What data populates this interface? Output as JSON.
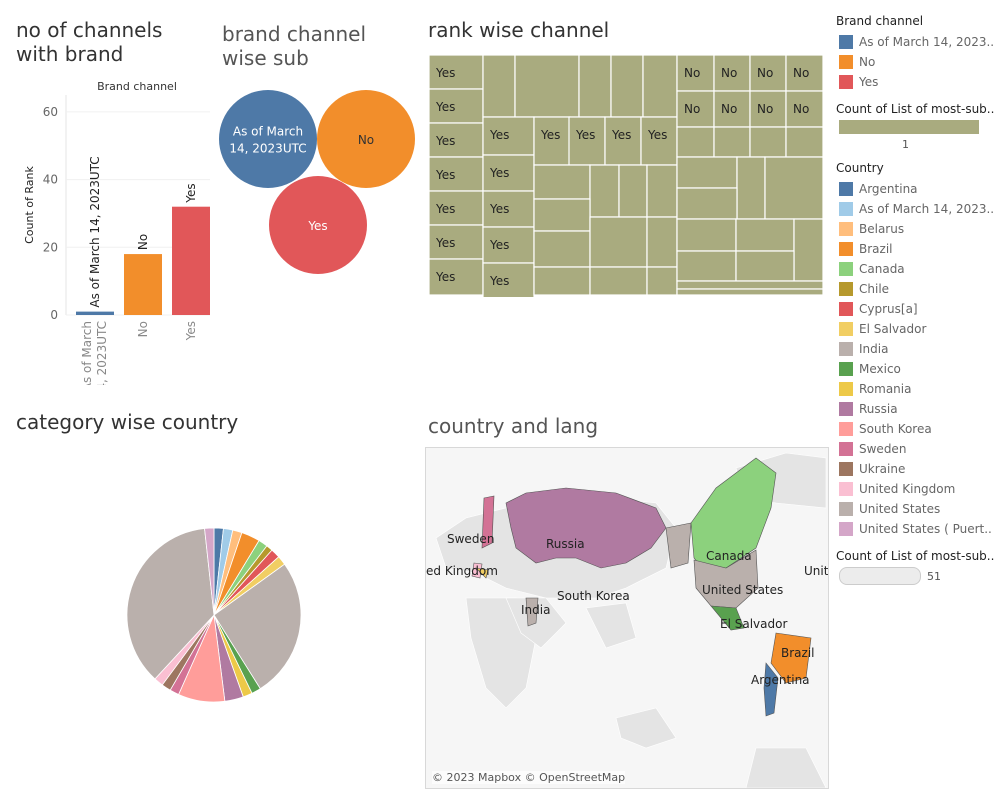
{
  "titles": {
    "bar": "no of channels with brand",
    "bubble": "brand channel wise sub",
    "treemap": "rank wise channel",
    "pie": "category wise country",
    "map": "country and lang"
  },
  "colors": {
    "as_of": "#4e79a7",
    "no": "#f28e2b",
    "yes": "#e15759",
    "treemap": "#a9ab7f"
  },
  "chart_data": [
    {
      "type": "bar",
      "title": "no of channels with brand",
      "header": "Brand channel",
      "ylabel": "Count of Rank",
      "xlabel": "",
      "ylim": [
        0,
        65
      ],
      "yticks": [
        0,
        20,
        40,
        60
      ],
      "categories": [
        "As of March 14, 2023UTC",
        "No",
        "Yes"
      ],
      "values": [
        1,
        18,
        32
      ],
      "data_labels": [
        "As of March 14, 2023UTC",
        "No",
        "Yes"
      ]
    },
    {
      "type": "bubble",
      "title": "brand channel wise sub",
      "bubbles": [
        {
          "label": "As of March 14, 2023UTC",
          "label_lines": [
            "As of March",
            "14, 2023UTC"
          ],
          "color": "#4e79a7"
        },
        {
          "label": "No",
          "label_lines": [
            "No"
          ],
          "color": "#f28e2b"
        },
        {
          "label": "Yes",
          "label_lines": [
            "Yes"
          ],
          "color": "#e15759"
        }
      ]
    },
    {
      "type": "treemap",
      "title": "rank wise channel",
      "cell_labels": [
        "Yes",
        "No"
      ],
      "yes_cells": 15,
      "no_cells": 8
    },
    {
      "type": "pie",
      "title": "category wise country",
      "slices": [
        {
          "label": "Argentina",
          "value": 1,
          "color": "#4e79a7"
        },
        {
          "label": "As of March 14, 2023UTC",
          "value": 1,
          "color": "#a0cbe8"
        },
        {
          "label": "Belarus",
          "value": 1,
          "color": "#ffbe7d"
        },
        {
          "label": "Brazil",
          "value": 2,
          "color": "#f28e2b"
        },
        {
          "label": "Canada",
          "value": 1,
          "color": "#8cd17d"
        },
        {
          "label": "Chile",
          "value": 0.7,
          "color": "#b6992d"
        },
        {
          "label": "Cyprus[a]",
          "value": 1,
          "color": "#e15759"
        },
        {
          "label": "El Salvador",
          "value": 1,
          "color": "#f1ce63"
        },
        {
          "label": "India",
          "value": 21,
          "color": "#bab0ac"
        },
        {
          "label": "Mexico",
          "value": 1,
          "color": "#59a14f"
        },
        {
          "label": "Romania",
          "value": 1,
          "color": "#edc948"
        },
        {
          "label": "Russia",
          "value": 2,
          "color": "#b07aa1"
        },
        {
          "label": "South Korea",
          "value": 5,
          "color": "#ff9d9a"
        },
        {
          "label": "Sweden",
          "value": 1,
          "color": "#d37295"
        },
        {
          "label": "Ukraine",
          "value": 1,
          "color": "#9d7660"
        },
        {
          "label": "United Kingdom",
          "value": 1,
          "color": "#fabfd2"
        },
        {
          "label": "United States",
          "value": 15,
          "color": "#bab0ac"
        },
        {
          "label": "United States ( Puerto Rico)",
          "value": 1,
          "color": "#d4a6c8"
        }
      ]
    }
  ],
  "map": {
    "labels": [
      "Sweden",
      "Russia",
      "ed Kingdom",
      "South Korea",
      "India",
      "Canada",
      "United States",
      "Unit",
      "El Salvador",
      "Brazil",
      "Argentina"
    ],
    "attribution": "© 2023 Mapbox © OpenStreetMap"
  },
  "legend": {
    "brand": {
      "title": "Brand channel",
      "items": [
        {
          "label": "As of March 14, 2023..",
          "color": "#4e79a7"
        },
        {
          "label": "No",
          "color": "#f28e2b"
        },
        {
          "label": "Yes",
          "color": "#e15759"
        }
      ]
    },
    "count1": {
      "title": "Count of List of most-sub..",
      "value": "1",
      "color": "#a9ab7f"
    },
    "country": {
      "title": "Country",
      "items": [
        {
          "label": "Argentina",
          "color": "#4e79a7"
        },
        {
          "label": "As of March 14, 2023..",
          "color": "#a0cbe8"
        },
        {
          "label": "Belarus",
          "color": "#ffbe7d"
        },
        {
          "label": "Brazil",
          "color": "#f28e2b"
        },
        {
          "label": "Canada",
          "color": "#8cd17d"
        },
        {
          "label": "Chile",
          "color": "#b6992d"
        },
        {
          "label": "Cyprus[a]",
          "color": "#e15759"
        },
        {
          "label": "El Salvador",
          "color": "#f1ce63"
        },
        {
          "label": "India",
          "color": "#bab0ac"
        },
        {
          "label": "Mexico",
          "color": "#59a14f"
        },
        {
          "label": "Romania",
          "color": "#edc948"
        },
        {
          "label": "Russia",
          "color": "#b07aa1"
        },
        {
          "label": "South Korea",
          "color": "#ff9d9a"
        },
        {
          "label": "Sweden",
          "color": "#d37295"
        },
        {
          "label": "Ukraine",
          "color": "#9d7660"
        },
        {
          "label": "United Kingdom",
          "color": "#fabfd2"
        },
        {
          "label": "United States",
          "color": "#bab0ac"
        },
        {
          "label": "United States ( Puert..",
          "color": "#d4a6c8"
        }
      ]
    },
    "count2": {
      "title": "Count of List of most-sub..",
      "value": "51"
    }
  }
}
